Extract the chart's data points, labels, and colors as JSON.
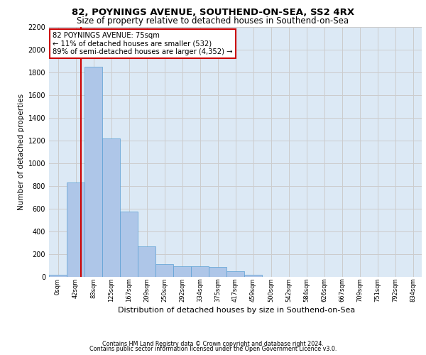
{
  "title": "82, POYNINGS AVENUE, SOUTHEND-ON-SEA, SS2 4RX",
  "subtitle": "Size of property relative to detached houses in Southend-on-Sea",
  "xlabel": "Distribution of detached houses by size in Southend-on-Sea",
  "ylabel": "Number of detached properties",
  "bar_labels": [
    "0sqm",
    "42sqm",
    "83sqm",
    "125sqm",
    "167sqm",
    "209sqm",
    "250sqm",
    "292sqm",
    "334sqm",
    "375sqm",
    "417sqm",
    "459sqm",
    "500sqm",
    "542sqm",
    "584sqm",
    "626sqm",
    "667sqm",
    "709sqm",
    "751sqm",
    "792sqm",
    "834sqm"
  ],
  "bar_values": [
    18,
    830,
    1850,
    1220,
    575,
    270,
    115,
    95,
    95,
    90,
    50,
    20,
    0,
    0,
    0,
    0,
    0,
    0,
    0,
    0,
    0
  ],
  "bar_color": "#aec6e8",
  "bar_edge_color": "#5a9fd4",
  "bar_width": 1.0,
  "property_size": 75,
  "property_label": "82 POYNINGS AVENUE: 75sqm",
  "annotation_line1": "← 11% of detached houses are smaller (532)",
  "annotation_line2": "89% of semi-detached houses are larger (4,352) →",
  "red_line_color": "#cc0000",
  "annotation_box_edge": "#cc0000",
  "ylim": [
    0,
    2200
  ],
  "yticks": [
    0,
    200,
    400,
    600,
    800,
    1000,
    1200,
    1400,
    1600,
    1800,
    2000,
    2200
  ],
  "grid_color": "#cccccc",
  "bg_color": "#dce9f5",
  "footer1": "Contains HM Land Registry data © Crown copyright and database right 2024.",
  "footer2": "Contains public sector information licensed under the Open Government Licence v3.0."
}
